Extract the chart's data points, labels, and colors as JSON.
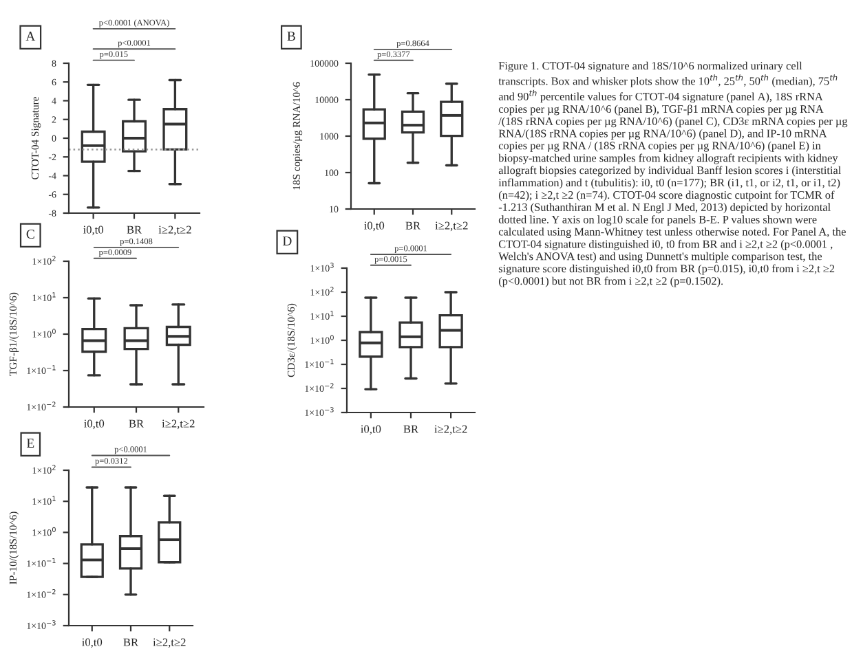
{
  "chart_data": [
    {
      "type": "box",
      "title": "A",
      "ylabel": "CTOT-04 Signature",
      "categories": [
        "i0,t0",
        "BR",
        "i≥2,t≥2"
      ],
      "boxes": [
        {
          "low": -7.4,
          "q1": -2.5,
          "median": -0.8,
          "q3": 0.7,
          "high": 5.7
        },
        {
          "low": -3.5,
          "q1": -1.4,
          "median": 0,
          "q3": 1.8,
          "high": 4.1
        },
        {
          "low": -4.9,
          "q1": -1.2,
          "median": 1.5,
          "q3": 3.1,
          "high": 6.2
        }
      ],
      "ylim": [
        -8,
        8
      ],
      "yticks": [
        -8,
        -6,
        -4,
        -2,
        0,
        2,
        4,
        6,
        8
      ],
      "ref_lines": [
        {
          "axis": "y",
          "value": -1.213,
          "line_style": "dotted",
          "color": "#999999"
        }
      ],
      "annotations": [
        "p<0.0001 (ANOVA)",
        "p<0.0001",
        "p=0.015"
      ],
      "grid": false
    },
    {
      "type": "box",
      "title": "B",
      "ylabel": "18S copies/µg RNA/10^6",
      "categories": [
        "i0,t0",
        "BR",
        "i≥2,t≥2"
      ],
      "boxes": [
        {
          "low": 51,
          "q1": 850,
          "median": 2300,
          "q3": 5400,
          "high": 49000
        },
        {
          "low": 186,
          "q1": 1260,
          "median": 2000,
          "q3": 4700,
          "high": 15000
        },
        {
          "low": 158,
          "q1": 1020,
          "median": 3700,
          "q3": 8700,
          "high": 27500
        }
      ],
      "log": "y",
      "ylim": [
        10,
        100000
      ],
      "yticks": [
        10,
        100,
        1000,
        10000,
        100000
      ],
      "annotations": [
        "p=0.8664",
        "p=0.3377"
      ],
      "grid": false
    },
    {
      "type": "box",
      "title": "C",
      "ylabel": "TGF-β1/(18S/10^6)",
      "categories": [
        "i0,t0",
        "BR",
        "i≥2,t≥2"
      ],
      "boxes": [
        {
          "low": 0.074,
          "q1": 0.33,
          "median": 0.66,
          "q3": 1.38,
          "high": 9.5
        },
        {
          "low": 0.042,
          "q1": 0.39,
          "median": 0.66,
          "q3": 1.45,
          "high": 6.2
        },
        {
          "low": 0.042,
          "q1": 0.51,
          "median": 0.87,
          "q3": 1.58,
          "high": 6.5
        }
      ],
      "log": "y",
      "ylim": [
        0.01,
        100
      ],
      "yticks": [
        {
          "value": 0.01,
          "label": "1×10$^{−2}$"
        },
        {
          "value": 0.1,
          "label": "1×10$^{−1}$"
        },
        {
          "value": 1,
          "label": "1×10$^{0}$"
        },
        {
          "value": 10,
          "label": "1×10$^{1}$"
        },
        {
          "value": 100,
          "label": "1×10$^{2}$"
        }
      ],
      "annotations": [
        "p=0.1408",
        "p=0.0009"
      ],
      "grid": false
    },
    {
      "type": "box",
      "title": "D",
      "ylabel": "CD3ε/(18S/10^6)",
      "categories": [
        "i0,t0",
        "BR",
        "i≥2,t≥2"
      ],
      "boxes": [
        {
          "low": 0.0093,
          "q1": 0.21,
          "median": 0.78,
          "q3": 2.2,
          "high": 59
        },
        {
          "low": 0.026,
          "q1": 0.52,
          "median": 1.4,
          "q3": 5.5,
          "high": 59
        },
        {
          "low": 0.016,
          "q1": 0.52,
          "median": 2.6,
          "q3": 11,
          "high": 100
        }
      ],
      "log": "y",
      "ylim": [
        0.001,
        1000
      ],
      "yticks": [
        {
          "value": 0.001,
          "label": "1×10$^{−3}$"
        },
        {
          "value": 0.01,
          "label": "1×10$^{−2}$"
        },
        {
          "value": 0.1,
          "label": "1×10$^{−1}$"
        },
        {
          "value": 1,
          "label": "1×10$^{0}$"
        },
        {
          "value": 10,
          "label": "1×10$^{1}$"
        },
        {
          "value": 100,
          "label": "1×10$^{2}$"
        },
        {
          "value": 1000,
          "label": "1×10$^{3}$"
        }
      ],
      "annotations": [
        "p=0.0001",
        "p=0.0015"
      ],
      "grid": false
    },
    {
      "type": "box",
      "title": "E",
      "ylabel": "IP-10/(18S/10^6)",
      "categories": [
        "i0,t0",
        "BR",
        "i≥2,t≥2"
      ],
      "boxes": [
        {
          "low": 0.037,
          "q1": 0.037,
          "median": 0.13,
          "q3": 0.41,
          "high": 28
        },
        {
          "low": 0.01,
          "q1": 0.069,
          "median": 0.3,
          "q3": 0.76,
          "high": 28
        },
        {
          "low": 0.11,
          "q1": 0.11,
          "median": 0.58,
          "q3": 2.1,
          "high": 15
        }
      ],
      "log": "y",
      "ylim": [
        0.001,
        100
      ],
      "yticks": [
        {
          "value": 0.001,
          "label": "1×10$^{−3}$"
        },
        {
          "value": 0.01,
          "label": "1×10$^{−2}$"
        },
        {
          "value": 0.1,
          "label": "1×10$^{−1}$"
        },
        {
          "value": 1,
          "label": "1×10$^{0}$"
        },
        {
          "value": 10,
          "label": "1×10$^{1}$"
        },
        {
          "value": 100,
          "label": "1×10$^{2}$"
        }
      ],
      "annotations": [
        "p<0.0001",
        "p=0.0312"
      ],
      "grid": false
    },
    {
      "type": "other",
      "annotations": [
        "Figure 1. CTOT-04 signature and 18S/10^6 normalized urinary cell transcripts. Box and whisker plots show the 10$^{th}$, 25$^{th}$, 50$^{th}$ (median), 75$^{th}$ and 90$^{th}$ percentile values for CTOT-04 signature (panel A), 18S rRNA copies per µg RNA/10^6 (panel B), TGF-β1 mRNA copies per µg RNA /(18S rRNA copies per µg RNA/10^6) (panel C), CD3ε mRNA copies per µg RNA/(18S rRNA copies per µg RNA/10^6) (panel D), and IP-10 mRNA copies per µg RNA / (18S rRNA copies per µg RNA/10^6) (panel E) in biopsy-matched urine samples from kidney allograft recipients with kidney allograft biopsies categorized by individual Banff lesion scores i (interstitial inflammation) and t (tubulitis): i0, t0 (n=177); BR (i1, t1, or i2, t1, or i1, t2) (n=42); i ≥2,t ≥2 (n=74). CTOT-04 score diagnostic cutpoint for TCMR of -1.213 (Suthanthiran M et al. N Engl J Med, 2013) depicted by horizontal dotted line. Y axis on log10 scale for panels B-E. P values shown were calculated using Mann-Whitney test unless otherwise noted. For Panel A, the CTOT-04 signature distinguished i0, t0 from BR and i ≥2,t ≥2 (p<0.0001 , Welch's ANOVA test) and using Dunnett's multiple comparison test, the signature score distinguished i0,t0 from BR (p=0.015), i0,t0 from i ≥2,t ≥2 (p<0.0001) but not BR from i ≥2,t ≥2 (p=0.1502)."
      ]
    }
  ]
}
